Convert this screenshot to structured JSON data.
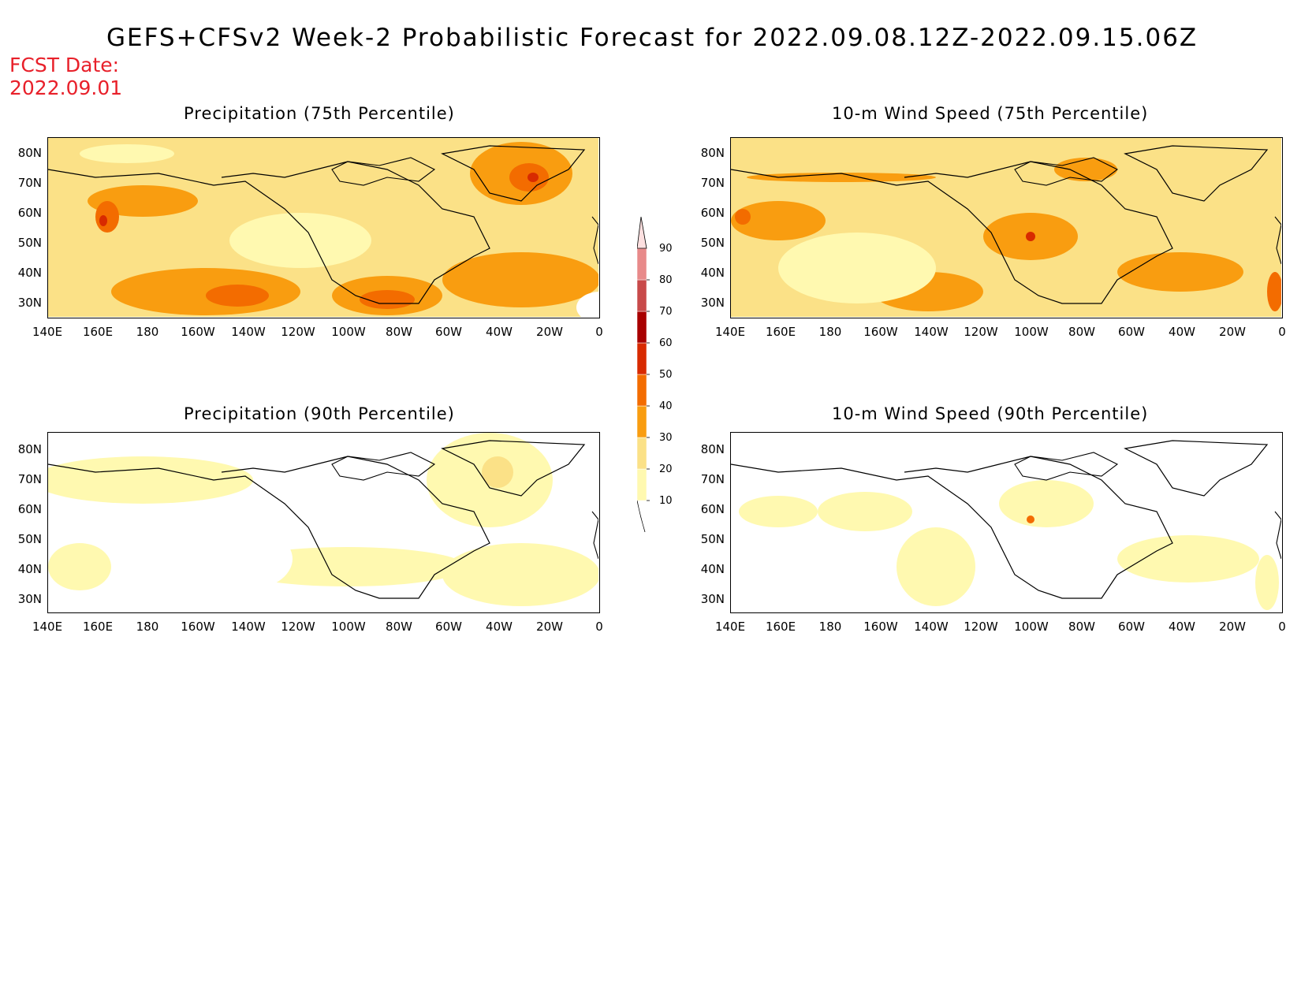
{
  "title": "GEFS+CFSv2 Week-2 Probabilistic Forecast for 2022.09.08.12Z-2022.09.15.06Z",
  "fcst_label": "FCST Date:",
  "fcst_date": "2022.09.01",
  "panels": [
    {
      "title": "Precipitation (75th Percentile)"
    },
    {
      "title": "10-m Wind Speed (75th Percentile)"
    },
    {
      "title": "Precipitation (90th Percentile)"
    },
    {
      "title": "10-m Wind Speed (90th Percentile)"
    }
  ],
  "lat_ticks": [
    "80N",
    "70N",
    "60N",
    "50N",
    "40N",
    "30N"
  ],
  "lon_ticks": [
    "140E",
    "160E",
    "180",
    "160W",
    "140W",
    "120W",
    "100W",
    "80W",
    "60W",
    "40W",
    "20W",
    "0"
  ],
  "colorbar": {
    "levels": [
      "10",
      "20",
      "30",
      "40",
      "50",
      "60",
      "70",
      "80",
      "90"
    ],
    "colors": [
      "#fff9b0",
      "#fbe187",
      "#f99d10",
      "#f36c00",
      "#d82a00",
      "#a80000",
      "#c84a4a",
      "#e88a8a",
      "#f7c8c8"
    ]
  }
}
